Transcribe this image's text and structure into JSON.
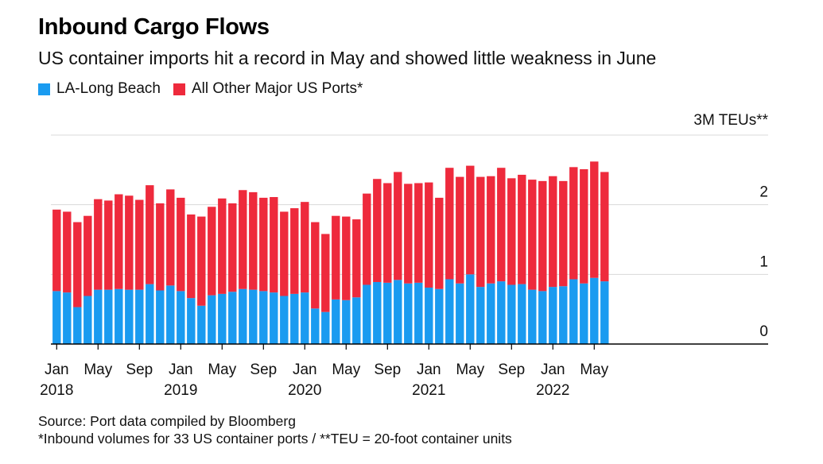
{
  "chart_data": {
    "type": "bar",
    "stacked": true,
    "title": "Inbound Cargo Flows",
    "subtitle": "US container imports hit a record in May and showed little weakness in June",
    "unit_label": "3M TEUs**",
    "ylim": [
      0,
      3
    ],
    "yticks": [
      0,
      1,
      2,
      3
    ],
    "ytick_labels": [
      "0",
      "1",
      "2",
      ""
    ],
    "grid": true,
    "legend_position": "top-left",
    "x_tick_labels": [
      {
        "month": "Jan",
        "year": "2018",
        "index": 0
      },
      {
        "month": "May",
        "year": "",
        "index": 4
      },
      {
        "month": "Sep",
        "year": "",
        "index": 8
      },
      {
        "month": "Jan",
        "year": "2019",
        "index": 12
      },
      {
        "month": "May",
        "year": "",
        "index": 16
      },
      {
        "month": "Sep",
        "year": "",
        "index": 20
      },
      {
        "month": "Jan",
        "year": "2020",
        "index": 24
      },
      {
        "month": "May",
        "year": "",
        "index": 28
      },
      {
        "month": "Sep",
        "year": "",
        "index": 32
      },
      {
        "month": "Jan",
        "year": "2021",
        "index": 36
      },
      {
        "month": "May",
        "year": "",
        "index": 40
      },
      {
        "month": "Sep",
        "year": "",
        "index": 44
      },
      {
        "month": "Jan",
        "year": "2022",
        "index": 48
      },
      {
        "month": "May",
        "year": "",
        "index": 52
      }
    ],
    "categories": [
      "2018-01",
      "2018-02",
      "2018-03",
      "2018-04",
      "2018-05",
      "2018-06",
      "2018-07",
      "2018-08",
      "2018-09",
      "2018-10",
      "2018-11",
      "2018-12",
      "2019-01",
      "2019-02",
      "2019-03",
      "2019-04",
      "2019-05",
      "2019-06",
      "2019-07",
      "2019-08",
      "2019-09",
      "2019-10",
      "2019-11",
      "2019-12",
      "2020-01",
      "2020-02",
      "2020-03",
      "2020-04",
      "2020-05",
      "2020-06",
      "2020-07",
      "2020-08",
      "2020-09",
      "2020-10",
      "2020-11",
      "2020-12",
      "2021-01",
      "2021-02",
      "2021-03",
      "2021-04",
      "2021-05",
      "2021-06",
      "2021-07",
      "2021-08",
      "2021-09",
      "2021-10",
      "2021-11",
      "2021-12",
      "2022-01",
      "2022-02",
      "2022-03",
      "2022-04",
      "2022-05",
      "2022-06"
    ],
    "series": [
      {
        "name": "LA-Long Beach",
        "color": "#1a9bf0",
        "values": [
          0.76,
          0.74,
          0.53,
          0.69,
          0.78,
          0.78,
          0.79,
          0.78,
          0.78,
          0.86,
          0.77,
          0.84,
          0.76,
          0.66,
          0.55,
          0.7,
          0.72,
          0.75,
          0.79,
          0.78,
          0.76,
          0.74,
          0.69,
          0.72,
          0.74,
          0.51,
          0.46,
          0.64,
          0.63,
          0.67,
          0.85,
          0.89,
          0.88,
          0.92,
          0.87,
          0.88,
          0.81,
          0.79,
          0.93,
          0.87,
          1.0,
          0.82,
          0.87,
          0.9,
          0.85,
          0.86,
          0.78,
          0.76,
          0.82,
          0.83,
          0.93,
          0.87,
          0.95,
          0.9
        ]
      },
      {
        "name": "All Other Major US Ports*",
        "color": "#ee2a3c",
        "values": [
          1.17,
          1.16,
          1.22,
          1.15,
          1.3,
          1.28,
          1.36,
          1.35,
          1.29,
          1.42,
          1.25,
          1.38,
          1.34,
          1.2,
          1.28,
          1.27,
          1.37,
          1.27,
          1.42,
          1.4,
          1.34,
          1.37,
          1.21,
          1.23,
          1.3,
          1.24,
          1.12,
          1.2,
          1.2,
          1.12,
          1.31,
          1.48,
          1.43,
          1.55,
          1.43,
          1.43,
          1.51,
          1.31,
          1.6,
          1.53,
          1.56,
          1.58,
          1.54,
          1.63,
          1.53,
          1.57,
          1.58,
          1.58,
          1.59,
          1.51,
          1.61,
          1.64,
          1.67,
          1.57
        ]
      }
    ]
  },
  "footnotes": {
    "source": "Source: Port data compiled by Bloomberg",
    "note": "*Inbound volumes for 33 US container ports / **TEU = 20-foot container units"
  }
}
